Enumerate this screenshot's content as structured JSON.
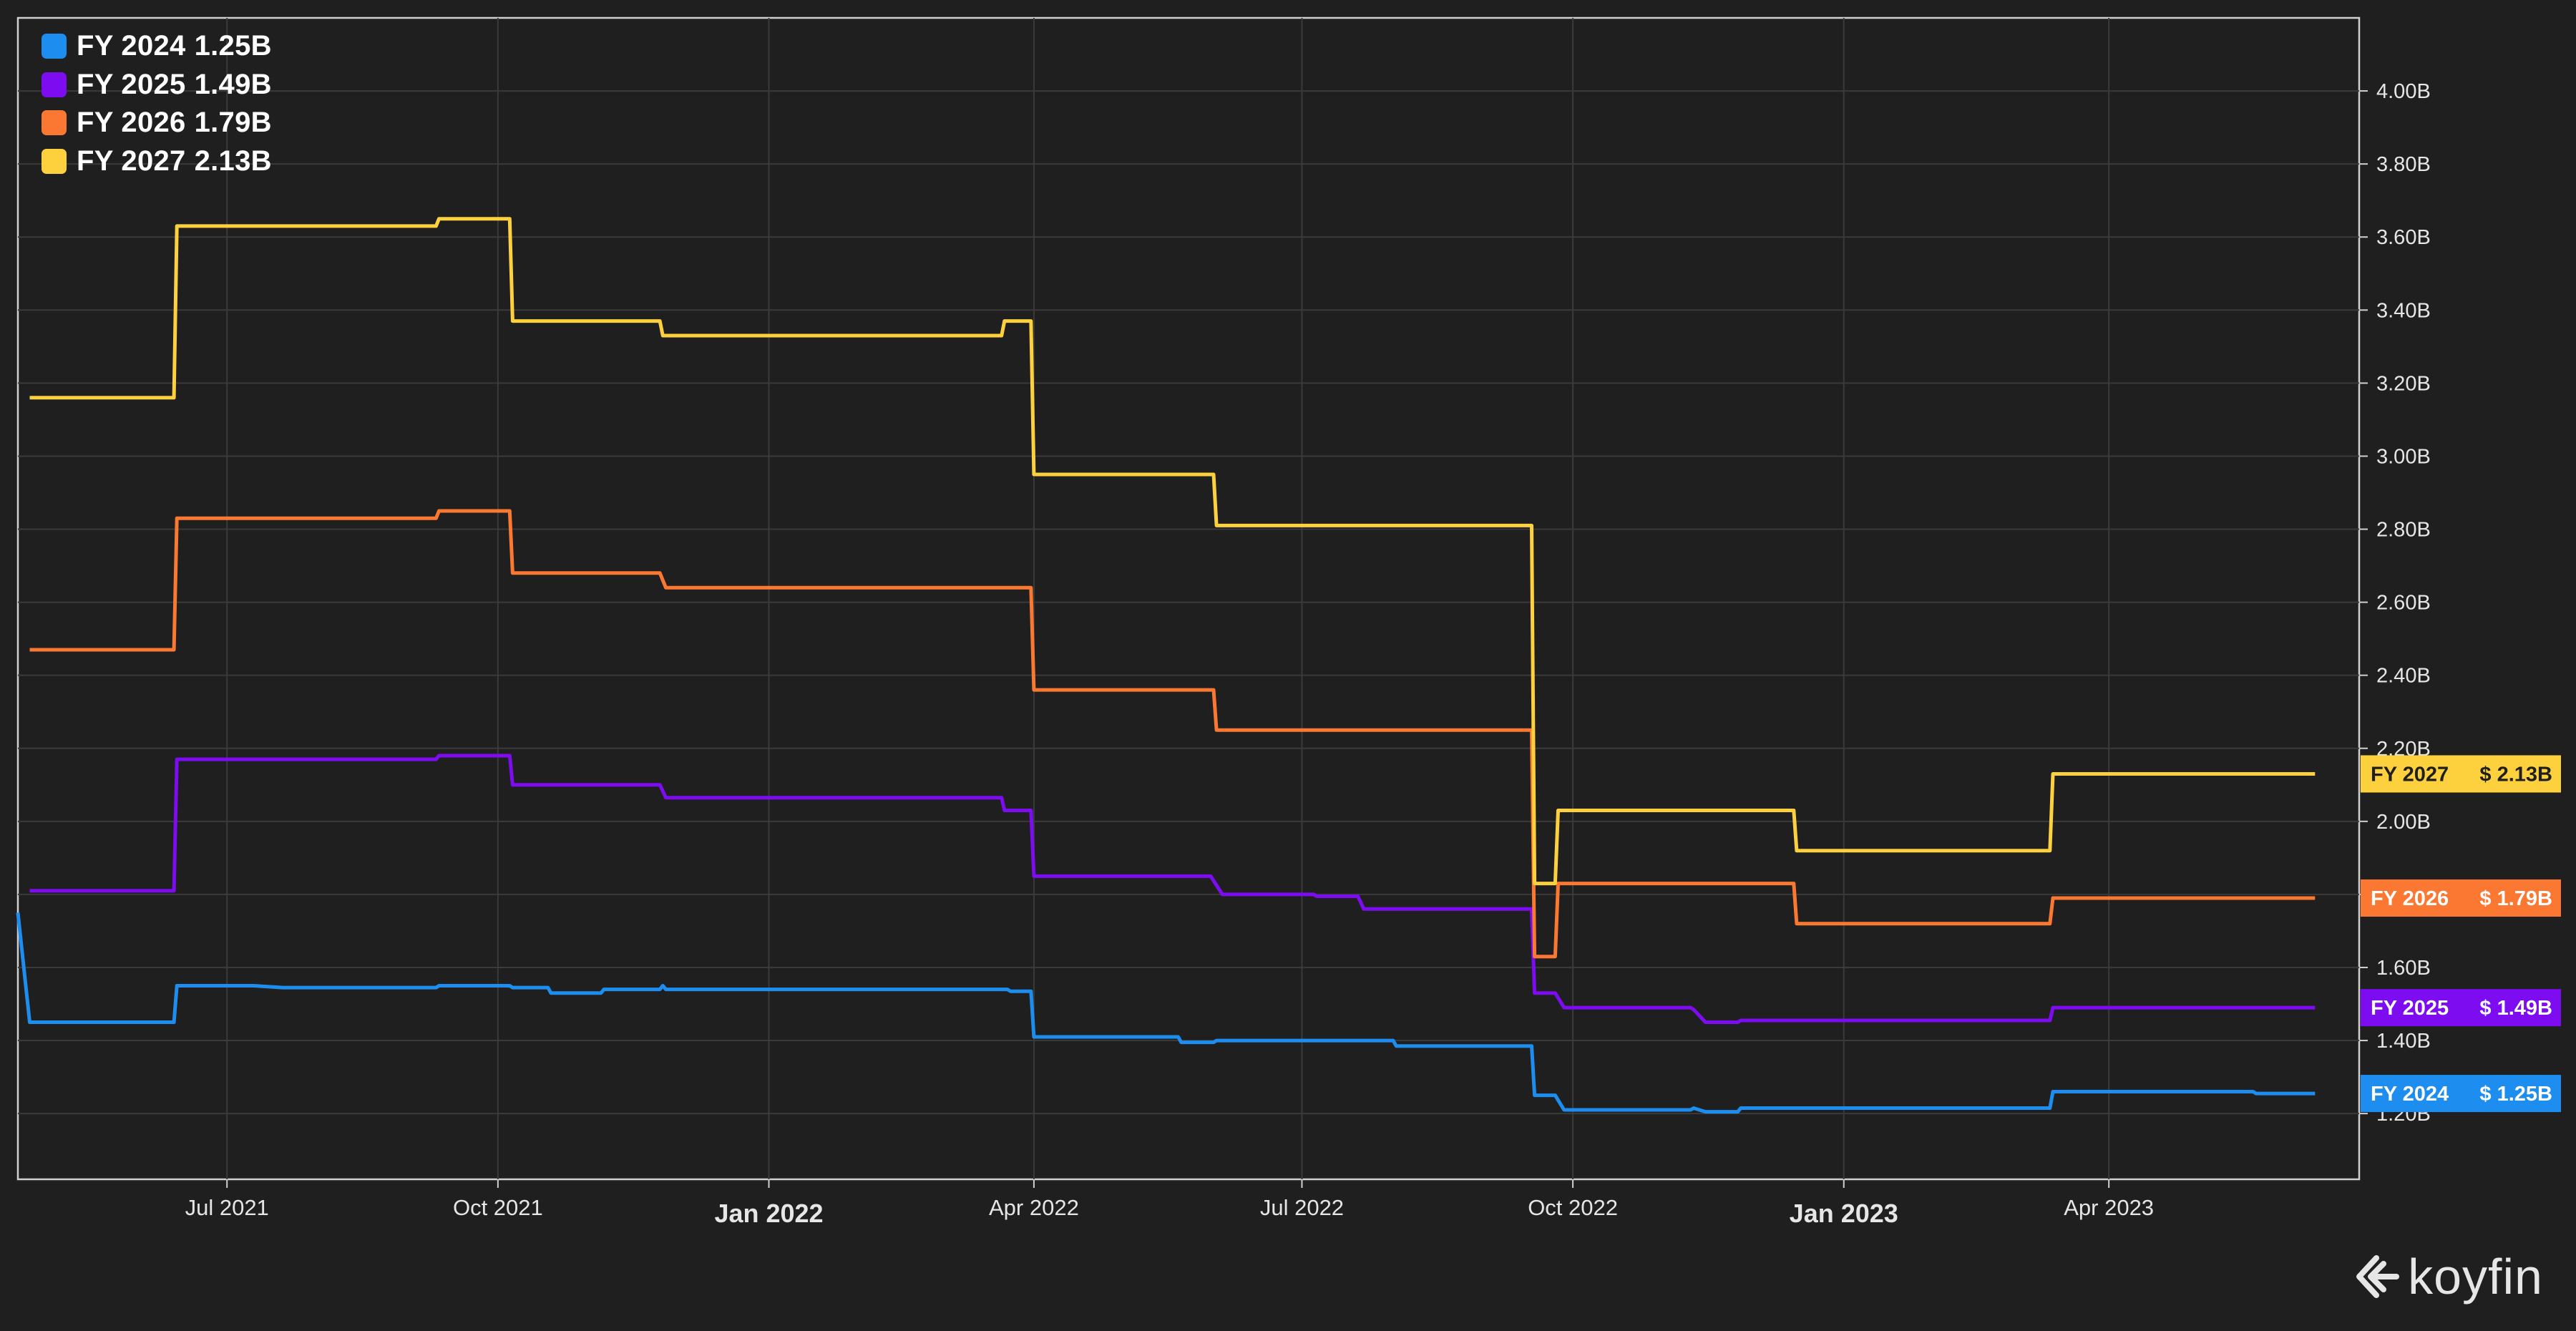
{
  "brand": {
    "name": "koyfin",
    "icon": "koyfin-logo-icon"
  },
  "chart_data": {
    "type": "line",
    "step": true,
    "grid": true,
    "legend_position": "top-left",
    "y_axis_side": "right",
    "ylim": [
      1.02,
      4.2
    ],
    "xlim": [
      "2021-04-21",
      "2023-06-25"
    ],
    "y_ticks": [
      1.2,
      1.4,
      1.6,
      1.8,
      2.0,
      2.2,
      2.4,
      2.6,
      2.8,
      3.0,
      3.2,
      3.4,
      3.6,
      3.8,
      4.0
    ],
    "y_tick_labels": [
      "1.20B",
      "1.40B",
      "1.60B",
      "1.80B",
      "2.00B",
      "2.20B",
      "2.40B",
      "2.60B",
      "2.80B",
      "3.00B",
      "3.20B",
      "3.40B",
      "3.60B",
      "3.80B",
      "4.00B"
    ],
    "x_ticks": [
      {
        "date": "2021-07-01",
        "label": "Jul 2021",
        "major": false
      },
      {
        "date": "2021-10-01",
        "label": "Oct 2021",
        "major": false
      },
      {
        "date": "2022-01-01",
        "label": "Jan 2022",
        "major": true
      },
      {
        "date": "2022-04-01",
        "label": "Apr 2022",
        "major": false
      },
      {
        "date": "2022-07-01",
        "label": "Jul 2022",
        "major": false
      },
      {
        "date": "2022-10-01",
        "label": "Oct 2022",
        "major": false
      },
      {
        "date": "2023-01-01",
        "label": "Jan 2023",
        "major": true
      },
      {
        "date": "2023-04-01",
        "label": "Apr 2023",
        "major": false
      }
    ],
    "series": [
      {
        "name": "FY 2024",
        "legend_value": "1.25B",
        "last_label": "$ 1.25B",
        "color": "#1e8df0",
        "points": [
          [
            "2021-04-21",
            1.75
          ],
          [
            "2021-04-25",
            1.45
          ],
          [
            "2021-06-13",
            1.45
          ],
          [
            "2021-06-14",
            1.55
          ],
          [
            "2021-07-10",
            1.55
          ],
          [
            "2021-07-20",
            1.545
          ],
          [
            "2021-09-10",
            1.545
          ],
          [
            "2021-09-11",
            1.55
          ],
          [
            "2021-10-05",
            1.55
          ],
          [
            "2021-10-06",
            1.545
          ],
          [
            "2021-10-18",
            1.545
          ],
          [
            "2021-10-19",
            1.53
          ],
          [
            "2021-11-05",
            1.53
          ],
          [
            "2021-11-06",
            1.54
          ],
          [
            "2021-11-25",
            1.54
          ],
          [
            "2021-11-26",
            1.55
          ],
          [
            "2021-11-27",
            1.54
          ],
          [
            "2022-03-23",
            1.54
          ],
          [
            "2022-03-24",
            1.535
          ],
          [
            "2022-03-31",
            1.535
          ],
          [
            "2022-04-01",
            1.41
          ],
          [
            "2022-05-20",
            1.41
          ],
          [
            "2022-05-21",
            1.395
          ],
          [
            "2022-06-01",
            1.395
          ],
          [
            "2022-06-02",
            1.4
          ],
          [
            "2022-08-01",
            1.4
          ],
          [
            "2022-08-02",
            1.385
          ],
          [
            "2022-09-17",
            1.385
          ],
          [
            "2022-09-18",
            1.25
          ],
          [
            "2022-09-25",
            1.25
          ],
          [
            "2022-09-28",
            1.21
          ],
          [
            "2022-11-10",
            1.21
          ],
          [
            "2022-11-11",
            1.215
          ],
          [
            "2022-11-15",
            1.205
          ],
          [
            "2022-11-26",
            1.205
          ],
          [
            "2022-11-27",
            1.215
          ],
          [
            "2023-03-12",
            1.215
          ],
          [
            "2023-03-13",
            1.26
          ],
          [
            "2023-05-20",
            1.26
          ],
          [
            "2023-05-21",
            1.255
          ],
          [
            "2023-06-10",
            1.255
          ]
        ]
      },
      {
        "name": "FY 2025",
        "legend_value": "1.49B",
        "last_label": "$ 1.49B",
        "color": "#7d0cf0",
        "points": [
          [
            "2021-04-25",
            1.81
          ],
          [
            "2021-06-13",
            1.81
          ],
          [
            "2021-06-14",
            2.17
          ],
          [
            "2021-09-10",
            2.17
          ],
          [
            "2021-09-11",
            2.18
          ],
          [
            "2021-10-05",
            2.18
          ],
          [
            "2021-10-06",
            2.1
          ],
          [
            "2021-11-25",
            2.1
          ],
          [
            "2021-11-27",
            2.065
          ],
          [
            "2022-03-21",
            2.065
          ],
          [
            "2022-03-22",
            2.03
          ],
          [
            "2022-03-31",
            2.03
          ],
          [
            "2022-04-01",
            1.85
          ],
          [
            "2022-05-31",
            1.85
          ],
          [
            "2022-06-04",
            1.8
          ],
          [
            "2022-07-05",
            1.8
          ],
          [
            "2022-07-06",
            1.795
          ],
          [
            "2022-07-20",
            1.795
          ],
          [
            "2022-07-22",
            1.76
          ],
          [
            "2022-09-17",
            1.76
          ],
          [
            "2022-09-18",
            1.53
          ],
          [
            "2022-09-25",
            1.53
          ],
          [
            "2022-09-28",
            1.49
          ],
          [
            "2022-11-10",
            1.49
          ],
          [
            "2022-11-11",
            1.485
          ],
          [
            "2022-11-15",
            1.45
          ],
          [
            "2022-11-26",
            1.45
          ],
          [
            "2022-11-27",
            1.455
          ],
          [
            "2023-03-12",
            1.455
          ],
          [
            "2023-03-13",
            1.49
          ],
          [
            "2023-06-10",
            1.49
          ]
        ]
      },
      {
        "name": "FY 2026",
        "legend_value": "1.79B",
        "last_label": "$ 1.79B",
        "color": "#fb7833",
        "points": [
          [
            "2021-04-25",
            2.47
          ],
          [
            "2021-06-13",
            2.47
          ],
          [
            "2021-06-14",
            2.83
          ],
          [
            "2021-09-10",
            2.83
          ],
          [
            "2021-09-11",
            2.85
          ],
          [
            "2021-10-05",
            2.85
          ],
          [
            "2021-10-06",
            2.68
          ],
          [
            "2021-11-25",
            2.68
          ],
          [
            "2021-11-27",
            2.64
          ],
          [
            "2022-03-31",
            2.64
          ],
          [
            "2022-04-01",
            2.36
          ],
          [
            "2022-06-01",
            2.36
          ],
          [
            "2022-06-02",
            2.25
          ],
          [
            "2022-09-17",
            2.25
          ],
          [
            "2022-09-18",
            1.63
          ],
          [
            "2022-09-25",
            1.63
          ],
          [
            "2022-09-26",
            1.83
          ],
          [
            "2022-12-15",
            1.83
          ],
          [
            "2022-12-16",
            1.72
          ],
          [
            "2023-03-12",
            1.72
          ],
          [
            "2023-03-13",
            1.79
          ],
          [
            "2023-06-10",
            1.79
          ]
        ]
      },
      {
        "name": "FY 2027",
        "legend_value": "2.13B",
        "last_label": "$ 2.13B",
        "color": "#fdd13e",
        "points": [
          [
            "2021-04-25",
            3.16
          ],
          [
            "2021-06-13",
            3.16
          ],
          [
            "2021-06-14",
            3.63
          ],
          [
            "2021-09-10",
            3.63
          ],
          [
            "2021-09-11",
            3.65
          ],
          [
            "2021-10-05",
            3.65
          ],
          [
            "2021-10-06",
            3.37
          ],
          [
            "2021-11-25",
            3.37
          ],
          [
            "2021-11-26",
            3.33
          ],
          [
            "2022-03-21",
            3.33
          ],
          [
            "2022-03-22",
            3.37
          ],
          [
            "2022-03-31",
            3.37
          ],
          [
            "2022-04-01",
            2.95
          ],
          [
            "2022-06-01",
            2.95
          ],
          [
            "2022-06-02",
            2.81
          ],
          [
            "2022-09-17",
            2.81
          ],
          [
            "2022-09-18",
            1.83
          ],
          [
            "2022-09-25",
            1.83
          ],
          [
            "2022-09-26",
            2.03
          ],
          [
            "2022-12-15",
            2.03
          ],
          [
            "2022-12-16",
            1.92
          ],
          [
            "2023-03-12",
            1.92
          ],
          [
            "2023-03-13",
            2.13
          ],
          [
            "2023-06-10",
            2.13
          ]
        ]
      }
    ]
  }
}
